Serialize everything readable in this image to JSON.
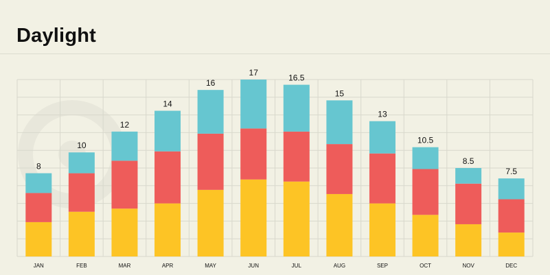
{
  "page_title": "Daylight",
  "colors": {
    "background": "#f2f1e4",
    "grid": "#d8d8cc",
    "segment_bottom": "#fdc425",
    "segment_middle": "#ee5c5a",
    "segment_top": "#66c6d0"
  },
  "chart_data": {
    "type": "bar",
    "stacked": true,
    "title": "Daylight",
    "xlabel": "",
    "ylabel": "",
    "ylim": [
      0,
      18
    ],
    "grid": true,
    "categories": [
      "JAN",
      "FEB",
      "MAR",
      "APR",
      "MAY",
      "JUN",
      "JUL",
      "AUG",
      "SEP",
      "OCT",
      "NOV",
      "DEC"
    ],
    "totals": [
      8,
      10,
      12,
      14,
      16,
      17,
      16.5,
      15,
      13,
      10.5,
      8.5,
      7.5
    ],
    "total_labels": [
      "8",
      "10",
      "12",
      "14",
      "16",
      "17",
      "16.5",
      "15",
      "13",
      "10.5",
      "8.5",
      "7.5"
    ],
    "series": [
      {
        "name": "bottom",
        "color": "#fdc425",
        "values": [
          3.3,
          4.3,
          4.6,
          5.1,
          6.4,
          7.4,
          7.2,
          6.0,
          5.1,
          4.0,
          3.1,
          2.3
        ]
      },
      {
        "name": "middle",
        "color": "#ee5c5a",
        "values": [
          2.8,
          3.7,
          4.6,
          5.0,
          5.4,
          4.9,
          4.8,
          4.8,
          4.8,
          4.4,
          3.9,
          3.2
        ]
      },
      {
        "name": "top",
        "color": "#66c6d0",
        "values": [
          1.9,
          2.0,
          2.8,
          3.9,
          4.2,
          4.7,
          4.5,
          4.2,
          3.1,
          2.1,
          1.5,
          2.0
        ]
      }
    ]
  }
}
